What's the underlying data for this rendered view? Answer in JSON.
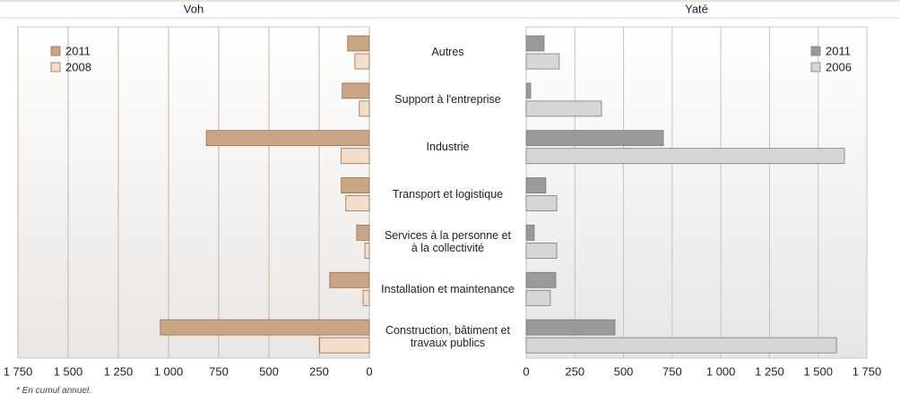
{
  "categories": [
    "Autres",
    "Support à l'entreprise",
    "Industrie",
    "Transport et logistique",
    "Services à la personne et\nà la collectivité",
    "Installation et maintenance",
    "Construction, bâtiment et\ntravaux publics"
  ],
  "footnote": "* En cumul annuel.",
  "chart_data": [
    {
      "type": "bar",
      "orientation": "horizontal",
      "x_reversed": true,
      "title": "Voh",
      "series": [
        {
          "name": "2011",
          "color": "#c9a485",
          "values": [
            108,
            135,
            812,
            140,
            63,
            197,
            1041
          ]
        },
        {
          "name": "2008",
          "color": "#f0ddcc",
          "values": [
            72,
            50,
            140,
            117,
            22,
            31,
            247
          ]
        }
      ],
      "xlim": [
        0,
        1750
      ],
      "xticks": [
        {
          "value": 1750,
          "label": "1 750"
        },
        {
          "value": 1500,
          "label": "1 500"
        },
        {
          "value": 1250,
          "label": "1 250"
        },
        {
          "value": 1000,
          "label": "1 000"
        },
        750,
        500,
        250,
        0
      ],
      "grid": true,
      "legend": "upper left"
    },
    {
      "type": "bar",
      "orientation": "horizontal",
      "x_reversed": false,
      "title": "Yaté",
      "series": [
        {
          "name": "2011",
          "color": "#9a9a9a",
          "values": [
            92,
            23,
            705,
            101,
            41,
            152,
            456
          ]
        },
        {
          "name": "2006",
          "color": "#d6d6d6",
          "values": [
            170,
            387,
            1635,
            157,
            157,
            124,
            1594
          ]
        }
      ],
      "xlim": [
        0,
        1750
      ],
      "xticks": [
        0,
        250,
        500,
        750,
        {
          "value": 1000,
          "label": "1 000"
        },
        {
          "value": 1250,
          "label": "1 250"
        },
        {
          "value": 1500,
          "label": "1 500"
        },
        {
          "value": 1750,
          "label": "1 750"
        }
      ],
      "grid": true,
      "legend": "upper right"
    }
  ]
}
